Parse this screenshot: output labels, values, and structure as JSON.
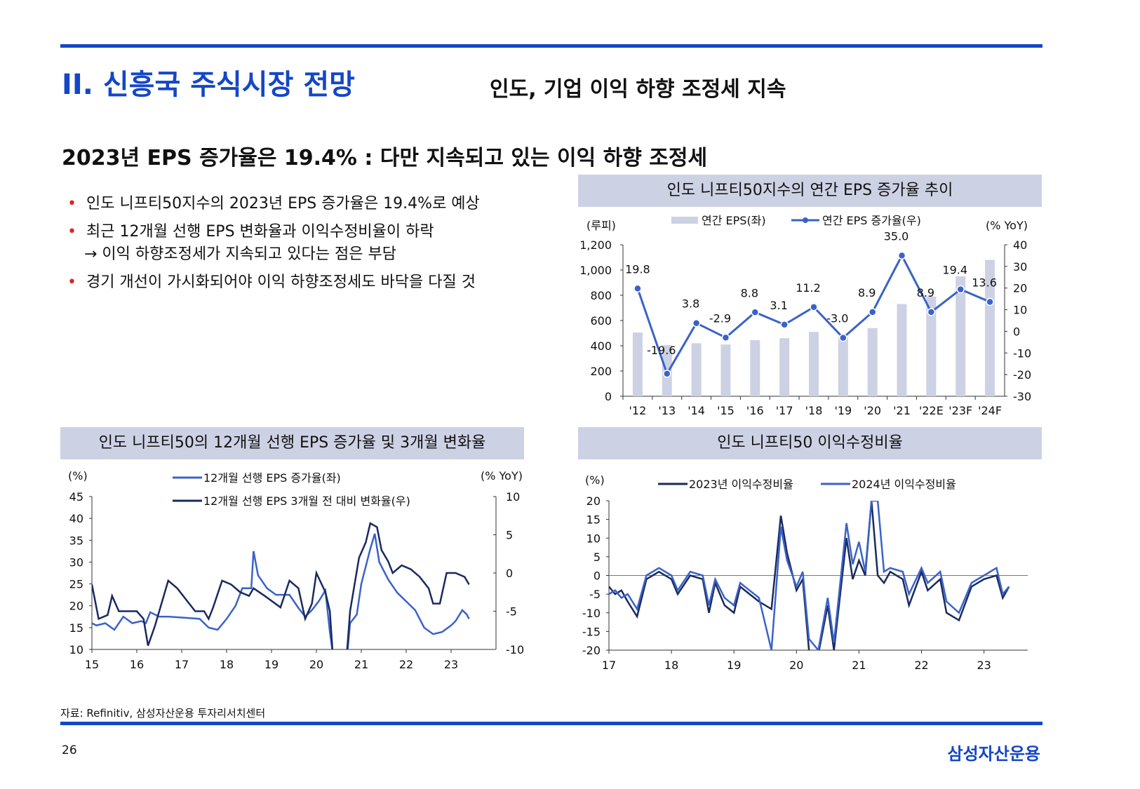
{
  "header": {
    "section": "II. 신흥국 주식시장 전망",
    "subtitle": "인도, 기업 이익 하향 조정세 지속"
  },
  "headline": "2023년 EPS 증가율은 19.4% : 다만 지속되고 있는 이익 하향 조정세",
  "bullets": [
    "인도 니프티50지수의 2023년 EPS 증가율은 19.4%로 예상",
    "최근 12개월 선행 EPS 변화율과 이익수정비율이 하락",
    "→ 이익 하향조정세가 지속되고 있다는 점은 부담",
    "경기 개선이 가시화되어야 이익 하향조정세도 바닥을 다질 것"
  ],
  "footer": {
    "source": "자료: Refinitiv, 삼성자산운용 투자리서치센터",
    "page": "26",
    "logo": "삼성자산운용"
  },
  "colors": {
    "accent": "#1446c8",
    "bar": "#cdd1e4",
    "line": "#3a62c8",
    "dark": "#1a2a5e"
  },
  "chart_data": [
    {
      "type": "bar+line",
      "title": "인도 니프티50지수의 연간 EPS 증가율 추이",
      "ylabel_left": "(루피)",
      "ylabel_right": "(% YoY)",
      "legend": [
        "연간 EPS(좌)",
        "연간 EPS 증가율(우)"
      ],
      "categories": [
        "'12",
        "'13",
        "'14",
        "'15",
        "'16",
        "'17",
        "'18",
        "'19",
        "'20",
        "'21",
        "'22E",
        "'23F",
        "'24F"
      ],
      "eps": [
        505,
        405,
        420,
        410,
        445,
        460,
        510,
        470,
        540,
        730,
        790,
        950,
        1080
      ],
      "growth": [
        19.8,
        -19.6,
        3.8,
        -2.9,
        8.8,
        3.1,
        11.2,
        -3.0,
        8.9,
        35.0,
        8.9,
        19.4,
        13.6
      ],
      "growth_labels": [
        "19.8",
        "-19.6",
        "3.8",
        "-2.9",
        "8.8",
        "3.1",
        "11.2",
        "-3.0",
        "8.9",
        "35.0",
        "8.9",
        "19.4",
        "13.6"
      ],
      "ylim_left": [
        0,
        1200
      ],
      "ylim_right": [
        -30,
        40
      ],
      "yticks_left": [
        "0",
        "200",
        "400",
        "600",
        "800",
        "1,000",
        "1,200"
      ],
      "yticks_right": [
        "-30",
        "-20",
        "-10",
        "0",
        "10",
        "20",
        "30",
        "40"
      ]
    },
    {
      "type": "line",
      "title": "인도 니프티50의 12개월 선행 EPS 증가율 및 3개월 변화율",
      "ylabel_left": "(%)",
      "ylabel_right": "(% YoY)",
      "legend": [
        "12개월 선행 EPS 증가율(좌)",
        "12개월 선행 EPS 3개월 전 대비 변화율(우)"
      ],
      "xlim": [
        15,
        24.0
      ],
      "xticks": [
        "15",
        "16",
        "17",
        "18",
        "19",
        "20",
        "21",
        "22",
        "23"
      ],
      "ylim_left": [
        10,
        45
      ],
      "ylim_right": [
        -10,
        10
      ],
      "yticks_left": [
        "10",
        "15",
        "20",
        "25",
        "30",
        "35",
        "40",
        "45"
      ],
      "yticks_right": [
        "-10",
        "-5",
        "0",
        "5",
        "10"
      ],
      "series": [
        {
          "name": "12개월 선행 EPS 증가율(좌)",
          "axis": "left",
          "x": [
            15.0,
            15.1,
            15.3,
            15.5,
            15.7,
            15.9,
            16.1,
            16.2,
            16.3,
            16.5,
            16.7,
            17.0,
            17.4,
            17.6,
            17.8,
            18.0,
            18.2,
            18.35,
            18.55,
            18.6,
            18.7,
            18.9,
            19.1,
            19.4,
            19.6,
            19.75,
            19.9,
            20.05,
            20.2,
            20.3,
            20.38,
            20.68,
            20.75,
            20.9,
            21.0,
            21.2,
            21.3,
            21.4,
            21.6,
            21.8,
            22.0,
            22.2,
            22.4,
            22.6,
            22.8,
            23.0,
            23.1,
            23.25,
            23.35,
            23.4
          ],
          "y": [
            16,
            15.5,
            16,
            14.5,
            17.5,
            16,
            16.5,
            16,
            18.5,
            17.5,
            17.5,
            17.3,
            17,
            15,
            14.5,
            17,
            20,
            24,
            24,
            32.5,
            27,
            24,
            22.5,
            22.5,
            19.5,
            17.5,
            19,
            21,
            23.5,
            14,
            8,
            8,
            16,
            18,
            25,
            33,
            36.5,
            30,
            26,
            23,
            21,
            19,
            15,
            13.5,
            14,
            15.5,
            16.5,
            19,
            18,
            17
          ]
        },
        {
          "name": "12개월 선행 EPS 3개월 전 대비 변화율(우)",
          "axis": "right",
          "x": [
            15.0,
            15.15,
            15.35,
            15.45,
            15.6,
            16.0,
            16.15,
            16.25,
            16.4,
            16.55,
            16.7,
            16.9,
            17.1,
            17.3,
            17.5,
            17.6,
            17.7,
            17.9,
            18.1,
            18.3,
            18.5,
            18.6,
            18.85,
            19.2,
            19.4,
            19.6,
            19.75,
            19.9,
            20.0,
            20.2,
            20.3,
            20.38,
            20.66,
            20.75,
            20.95,
            21.1,
            21.2,
            21.35,
            21.45,
            21.6,
            21.7,
            21.9,
            22.1,
            22.3,
            22.5,
            22.6,
            22.75,
            22.9,
            23.1,
            23.3,
            23.4
          ],
          "y": [
            -1.5,
            -6,
            -5.5,
            -3,
            -5,
            -5,
            -6,
            -9.5,
            -7,
            -4,
            -1,
            -2,
            -3.5,
            -5,
            -5,
            -6,
            -4.5,
            -1,
            -1.5,
            -2.5,
            -3,
            -2,
            -3,
            -4.5,
            -1,
            -2,
            -6,
            -4,
            0,
            -2.5,
            -5,
            -12,
            -12,
            -5,
            2,
            4,
            6.5,
            6,
            3,
            1.5,
            0,
            1,
            0.5,
            -0.5,
            -2,
            -4,
            -4,
            0,
            0,
            -0.5,
            -1.5
          ]
        }
      ]
    },
    {
      "type": "line",
      "title": "인도 니프티50 이익수정비율",
      "ylabel": "(%)",
      "legend": [
        "2023년 이익수정비율",
        "2024년 이익수정비율"
      ],
      "xlim": [
        17,
        23.7
      ],
      "xticks": [
        "17",
        "18",
        "19",
        "20",
        "21",
        "22",
        "23"
      ],
      "ylim": [
        -20,
        20
      ],
      "yticks": [
        "-20",
        "-15",
        "-10",
        "-5",
        "0",
        "5",
        "10",
        "15",
        "20"
      ],
      "series": [
        {
          "name": "2023년 이익수정비율",
          "x": [
            17.0,
            17.1,
            17.2,
            17.3,
            17.45,
            17.6,
            17.8,
            18.0,
            18.1,
            18.3,
            18.5,
            18.6,
            18.7,
            18.85,
            19.0,
            19.1,
            19.25,
            19.4,
            19.6,
            19.75,
            19.85,
            20.0,
            20.1,
            20.2,
            20.35,
            20.5,
            20.6,
            20.8,
            20.9,
            21.0,
            21.1,
            21.2,
            21.3,
            21.4,
            21.5,
            21.7,
            21.8,
            22.0,
            22.1,
            22.3,
            22.4,
            22.6,
            22.8,
            23.0,
            23.2,
            23.3,
            23.4
          ],
          "y": [
            -3,
            -5,
            -4,
            -7,
            -11,
            -1,
            1,
            -1,
            -5,
            0,
            -1,
            -10,
            -2,
            -8,
            -10,
            -3,
            -5,
            -7,
            -9,
            16,
            6,
            -4,
            -1,
            -20,
            -21,
            -8,
            -20,
            10,
            -1,
            4,
            0,
            20,
            0,
            -2,
            1,
            -1,
            -8,
            1,
            -4,
            -1,
            -10,
            -12,
            -3,
            -1,
            0,
            -6,
            -3
          ]
        },
        {
          "name": "2024년 이익수정비율",
          "x": [
            17.0,
            17.1,
            17.2,
            17.3,
            17.45,
            17.6,
            17.8,
            18.0,
            18.1,
            18.3,
            18.5,
            18.6,
            18.7,
            18.85,
            19.0,
            19.1,
            19.25,
            19.4,
            19.6,
            19.75,
            19.85,
            20.0,
            20.1,
            20.2,
            20.35,
            20.5,
            20.6,
            20.8,
            20.9,
            21.0,
            21.1,
            21.2,
            21.3,
            21.4,
            21.5,
            21.7,
            21.8,
            22.0,
            22.1,
            22.3,
            22.4,
            22.6,
            22.8,
            23.0,
            23.2,
            23.3,
            23.4
          ],
          "y": [
            -5,
            -4,
            -6,
            -5,
            -9,
            0,
            2,
            0,
            -4,
            1,
            0,
            -8,
            -1,
            -6,
            -8,
            -2,
            -4,
            -6,
            -20,
            13,
            4,
            -3,
            1,
            -17,
            -20,
            -6,
            -18,
            14,
            3,
            9,
            1,
            20,
            20,
            1,
            2,
            1,
            -5,
            2,
            -2,
            1,
            -7,
            -10,
            -2,
            0,
            2,
            -5,
            -3
          ]
        }
      ]
    }
  ]
}
